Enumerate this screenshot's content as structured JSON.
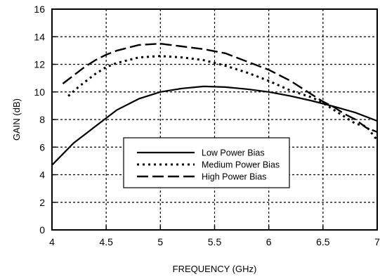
{
  "chart_data": {
    "type": "line",
    "xlabel": "FREQUENCY (GHz)",
    "ylabel": "GAIN (dB)",
    "xlim": [
      4,
      7
    ],
    "ylim": [
      0,
      16
    ],
    "xticks": [
      4,
      4.5,
      5,
      5.5,
      6,
      6.5,
      7
    ],
    "xtick_labels": [
      "4",
      "4.5",
      "5",
      "5.5",
      "6",
      "6.5",
      "7"
    ],
    "yticks": [
      0,
      2,
      4,
      6,
      8,
      10,
      12,
      14,
      16
    ],
    "ytick_labels": [
      "0",
      "2",
      "4",
      "6",
      "8",
      "10",
      "12",
      "14",
      "16"
    ],
    "grid": true,
    "legend_position": "lower-center",
    "series": [
      {
        "name": "Low Power Bias",
        "style": "solid",
        "x": [
          4.0,
          4.2,
          4.4,
          4.6,
          4.8,
          5.0,
          5.2,
          5.4,
          5.6,
          5.8,
          6.0,
          6.2,
          6.4,
          6.6,
          6.8,
          7.0
        ],
        "y": [
          4.7,
          6.3,
          7.5,
          8.7,
          9.5,
          10.0,
          10.25,
          10.4,
          10.35,
          10.2,
          10.0,
          9.7,
          9.35,
          8.95,
          8.5,
          7.9
        ]
      },
      {
        "name": "Medium Power Bias",
        "style": "dotted",
        "x": [
          4.15,
          4.25,
          4.4,
          4.5,
          4.6,
          4.8,
          5.0,
          5.2,
          5.4,
          5.6,
          5.8,
          6.0,
          6.2,
          6.4,
          6.5,
          6.6,
          6.7,
          6.8,
          6.9,
          7.0
        ],
        "y": [
          9.7,
          10.4,
          11.3,
          11.8,
          12.1,
          12.5,
          12.6,
          12.5,
          12.3,
          11.9,
          11.4,
          10.8,
          10.1,
          9.6,
          9.2,
          8.7,
          8.2,
          7.7,
          7.5,
          6.5
        ]
      },
      {
        "name": "High Power Bias",
        "style": "dashed",
        "x": [
          4.1,
          4.2,
          4.3,
          4.4,
          4.5,
          4.6,
          4.8,
          5.0,
          5.2,
          5.4,
          5.6,
          5.8,
          6.0,
          6.2,
          6.4,
          6.5,
          6.6,
          6.7,
          6.8,
          6.9,
          7.0
        ],
        "y": [
          10.6,
          11.2,
          11.8,
          12.3,
          12.7,
          13.0,
          13.4,
          13.5,
          13.3,
          13.1,
          12.8,
          12.2,
          11.6,
          10.8,
          9.8,
          9.3,
          8.9,
          8.4,
          8.0,
          7.4,
          7.1
        ]
      }
    ]
  }
}
